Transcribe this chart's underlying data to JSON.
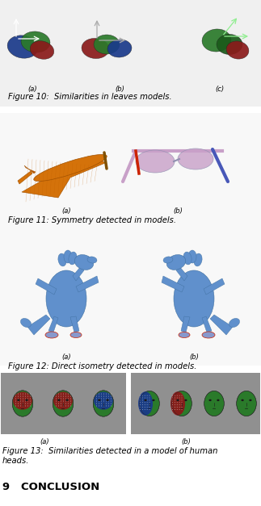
{
  "page_bg": "#ffffff",
  "fig10_caption": "Figure 10:  Similarities in leaves models.",
  "fig10_sub_a": "(a)",
  "fig10_sub_b": "(b)",
  "fig10_sub_c": "(c)",
  "fig11_caption": "Figure 11: Symmetry detected in models.",
  "fig11_sub_a": "(a)",
  "fig11_sub_b": "(b)",
  "fig12_caption": "Figure 12: Direct isometry detected in models.",
  "fig12_sub_a": "(a)",
  "fig12_sub_b": "(b)",
  "fig13_caption": "Figure 13:  Similarities detected in a model of human\nheads.",
  "fig13_sub_a": "(a)",
  "fig13_sub_b": "(b)",
  "conclusion_title": "9   CONCLUSION",
  "font_size_caption": 7.2,
  "font_size_sub": 6.0,
  "font_size_conclusion": 9.5,
  "leaf_blue": "#1a3a8a",
  "leaf_green": "#2a7a2a",
  "leaf_red": "#8a1a1a",
  "leaf_dark_green": "#1a5a1a",
  "plane_orange": "#d4720a",
  "plane_dark": "#a05000",
  "glasses_pink": "#c8a0c8",
  "glasses_blue": "#4858b8",
  "glasses_red": "#cc2200",
  "dragon_blue": "#6090cc",
  "dragon_dark": "#4070a0",
  "head_green": "#2a7a2a",
  "head_red": "#8a1a1a",
  "head_navy": "#1a3a8a"
}
